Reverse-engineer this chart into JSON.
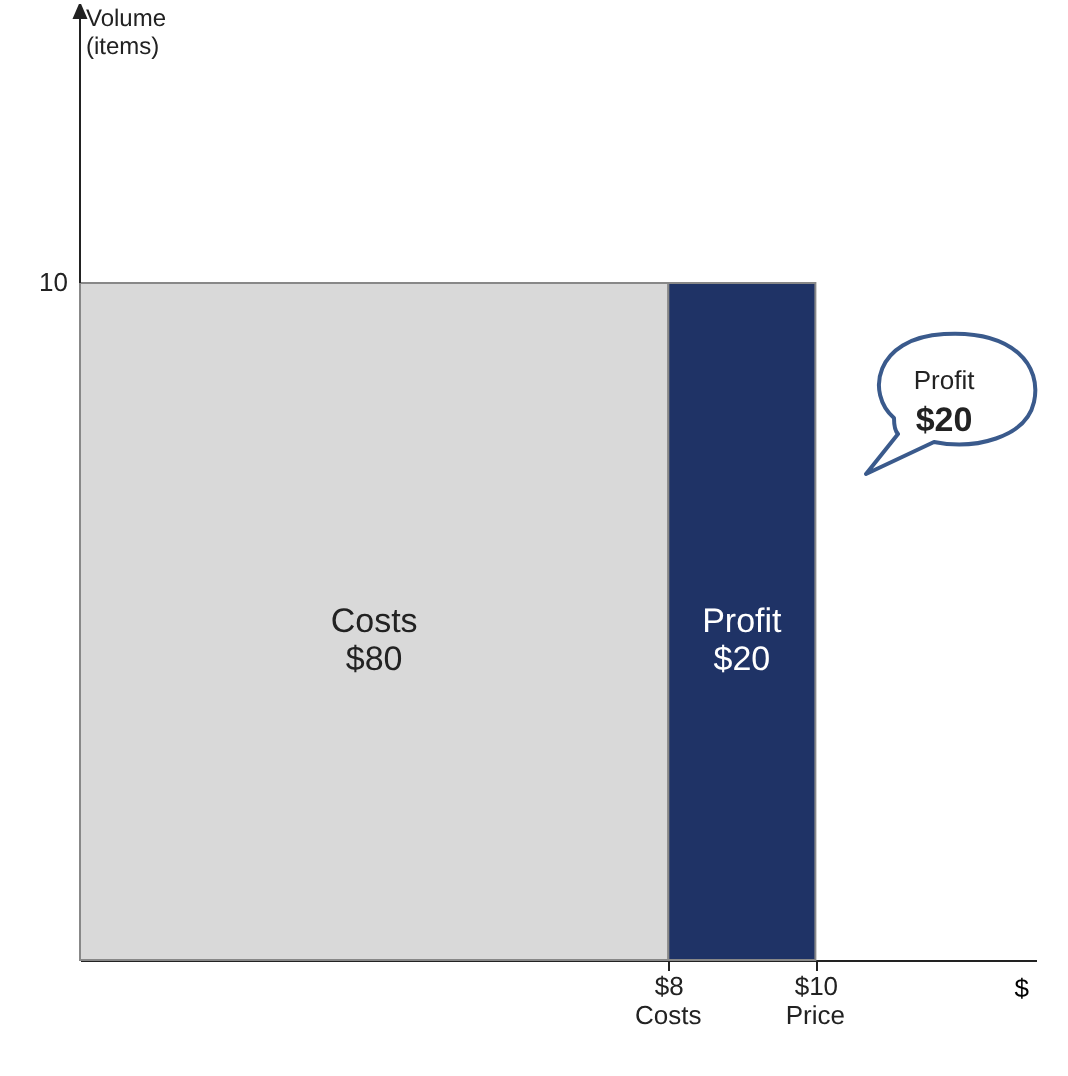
{
  "chart_data": {
    "type": "bar",
    "orientation": "horizontal",
    "stacked": true,
    "xlabel": "$",
    "categories": [
      null
    ],
    "series": [
      {
        "color": "#d9d9d9",
        "values": [
          8
        ]
      },
      {
        "color": "#1f3366",
        "values": [
          2
        ]
      }
    ],
    "xlim": [
      0,
      13
    ],
    "xticks": [
      {
        "value": 8,
        "label": "$8"
      },
      {
        "value": 10,
        "label": "$10"
      }
    ],
    "grid": false,
    "annotations": [
      "Costs\n$80",
      "Profit\n$20",
      "10",
      "Profit\n$20",
      "Volume\n(items)",
      "Costs",
      "Price"
    ]
  }
}
